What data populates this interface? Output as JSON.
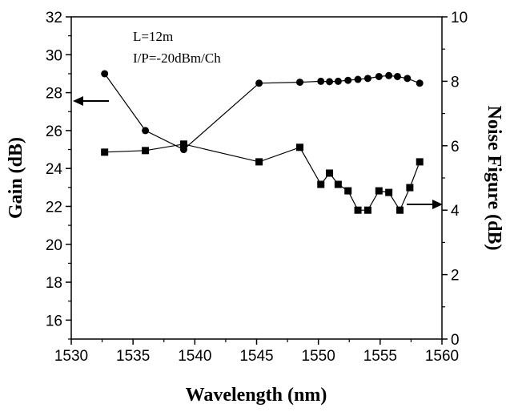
{
  "chart_data": {
    "type": "line",
    "xlabel": "Wavelength (nm)",
    "ylabel": "Gain (dB)",
    "y2label": "Noise Figure (dB)",
    "xlim": [
      1530,
      1560
    ],
    "ylim": [
      15,
      32
    ],
    "y2lim": [
      0,
      10
    ],
    "xticks": [
      "1530",
      "1535",
      "1540",
      "1545",
      "1550",
      "1555",
      "1560"
    ],
    "yticks": [
      "16",
      "18",
      "20",
      "22",
      "24",
      "26",
      "28",
      "30",
      "32"
    ],
    "y2ticks": [
      "0",
      "2",
      "4",
      "6",
      "8",
      "10"
    ],
    "annotations": [
      "L=12m",
      "I/P=-20dBm/Ch"
    ],
    "grid": false,
    "series": [
      {
        "axis": "left",
        "marker": "circle",
        "x": [
          1532.7,
          1536.0,
          1539.1,
          1545.2,
          1548.5,
          1550.2,
          1550.9,
          1551.6,
          1552.4,
          1553.2,
          1554.0,
          1554.9,
          1555.7,
          1556.4,
          1557.2,
          1558.2
        ],
        "y": [
          29.0,
          26.0,
          25.0,
          28.5,
          28.55,
          28.6,
          28.58,
          28.6,
          28.65,
          28.7,
          28.75,
          28.85,
          28.9,
          28.85,
          28.75,
          28.5
        ]
      },
      {
        "axis": "right",
        "marker": "square",
        "x": [
          1532.7,
          1536.0,
          1539.1,
          1545.2,
          1548.5,
          1550.2,
          1550.9,
          1551.6,
          1552.4,
          1553.2,
          1554.0,
          1554.9,
          1555.7,
          1556.6,
          1557.4,
          1558.2
        ],
        "y": [
          5.8,
          5.85,
          6.05,
          5.5,
          5.95,
          4.8,
          5.15,
          4.8,
          4.6,
          4.0,
          4.0,
          4.6,
          4.55,
          4.0,
          4.7,
          5.5
        ]
      }
    ]
  }
}
